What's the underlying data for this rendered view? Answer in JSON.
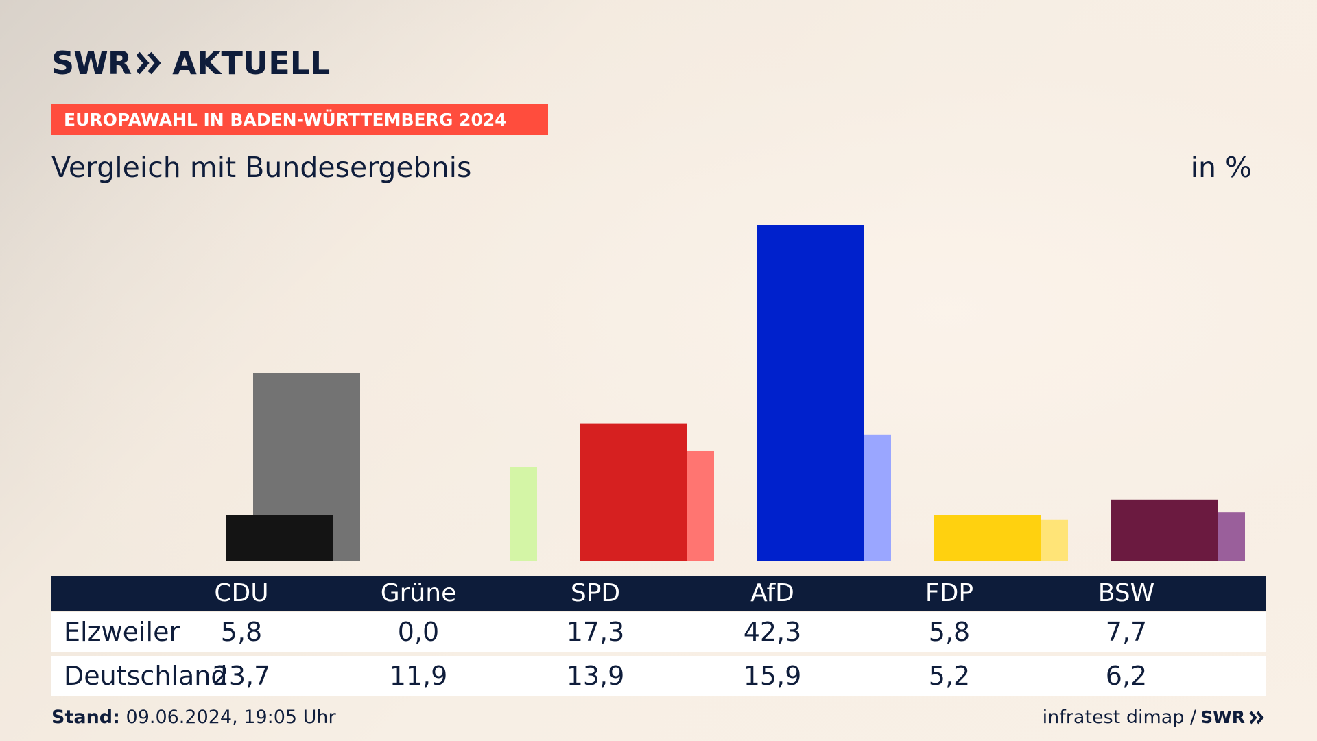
{
  "brand": {
    "logo_text": "SWR",
    "section_text": "AKTUELL",
    "colors": {
      "navy": "#0f1d3b",
      "banner": "#ff4d3d"
    }
  },
  "header": {
    "banner": "EUROPAWAHL IN BADEN-WÜRTTEMBERG 2024",
    "subtitle": "Vergleich mit Bundesergebnis",
    "unit": "in %"
  },
  "table": {
    "row_labels": [
      "Elzweiler",
      "Deutschland"
    ]
  },
  "footer": {
    "stand_label": "Stand:",
    "stand_value": "09.06.2024, 19:05 Uhr",
    "source": "infratest dimap /",
    "source_logo": "SWR"
  },
  "chart_data": {
    "type": "bar",
    "categories": [
      "CDU",
      "Grüne",
      "SPD",
      "AfD",
      "FDP",
      "BSW"
    ],
    "series": [
      {
        "name": "Elzweiler",
        "values": [
          5.8,
          0.0,
          17.3,
          42.3,
          5.8,
          7.7
        ]
      },
      {
        "name": "Deutschland",
        "values": [
          23.7,
          11.9,
          13.9,
          15.9,
          5.2,
          6.2
        ]
      }
    ],
    "colors": {
      "primary": [
        "#141414",
        "#d4f5a6",
        "#d62020",
        "#0021cc",
        "#ffd10f",
        "#6b1a40"
      ],
      "secondary": [
        "#737373",
        "#d4f5a6",
        "#ff7571",
        "#9aa6ff",
        "#ffe477",
        "#9a5f9b"
      ]
    },
    "ylim": [
      0,
      45
    ],
    "grid": false,
    "legend": "table-below"
  }
}
